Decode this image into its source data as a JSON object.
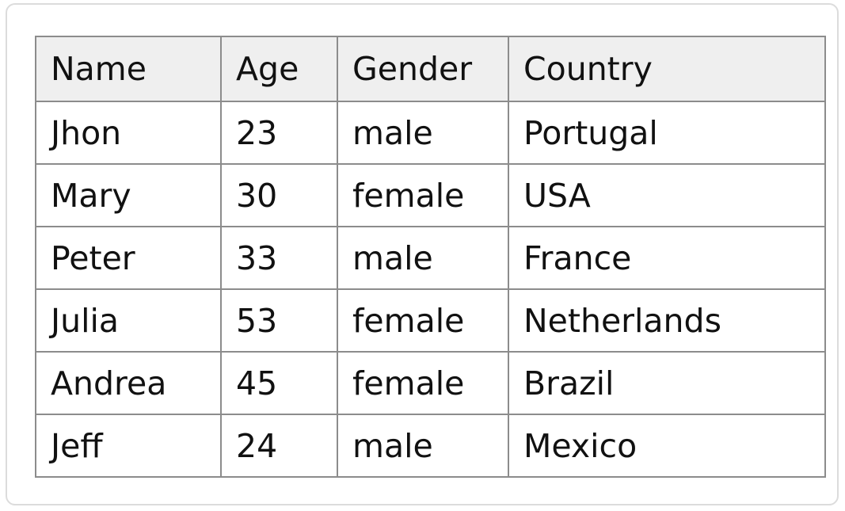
{
  "table": {
    "columns": [
      "Name",
      "Age",
      "Gender",
      "Country"
    ],
    "rows": [
      [
        "Jhon",
        "23",
        "male",
        "Portugal"
      ],
      [
        "Mary",
        "30",
        "female",
        "USA"
      ],
      [
        "Peter",
        "33",
        "male",
        "France"
      ],
      [
        "Julia",
        "53",
        "female",
        "Netherlands"
      ],
      [
        "Andrea",
        "45",
        "female",
        "Brazil"
      ],
      [
        "Jeff",
        "24",
        "male",
        "Mexico"
      ]
    ]
  },
  "colors": {
    "header_background": "#efefef",
    "grid_border": "#8c8c8c",
    "frame_border": "#dcdcdc",
    "text": "#111111"
  }
}
